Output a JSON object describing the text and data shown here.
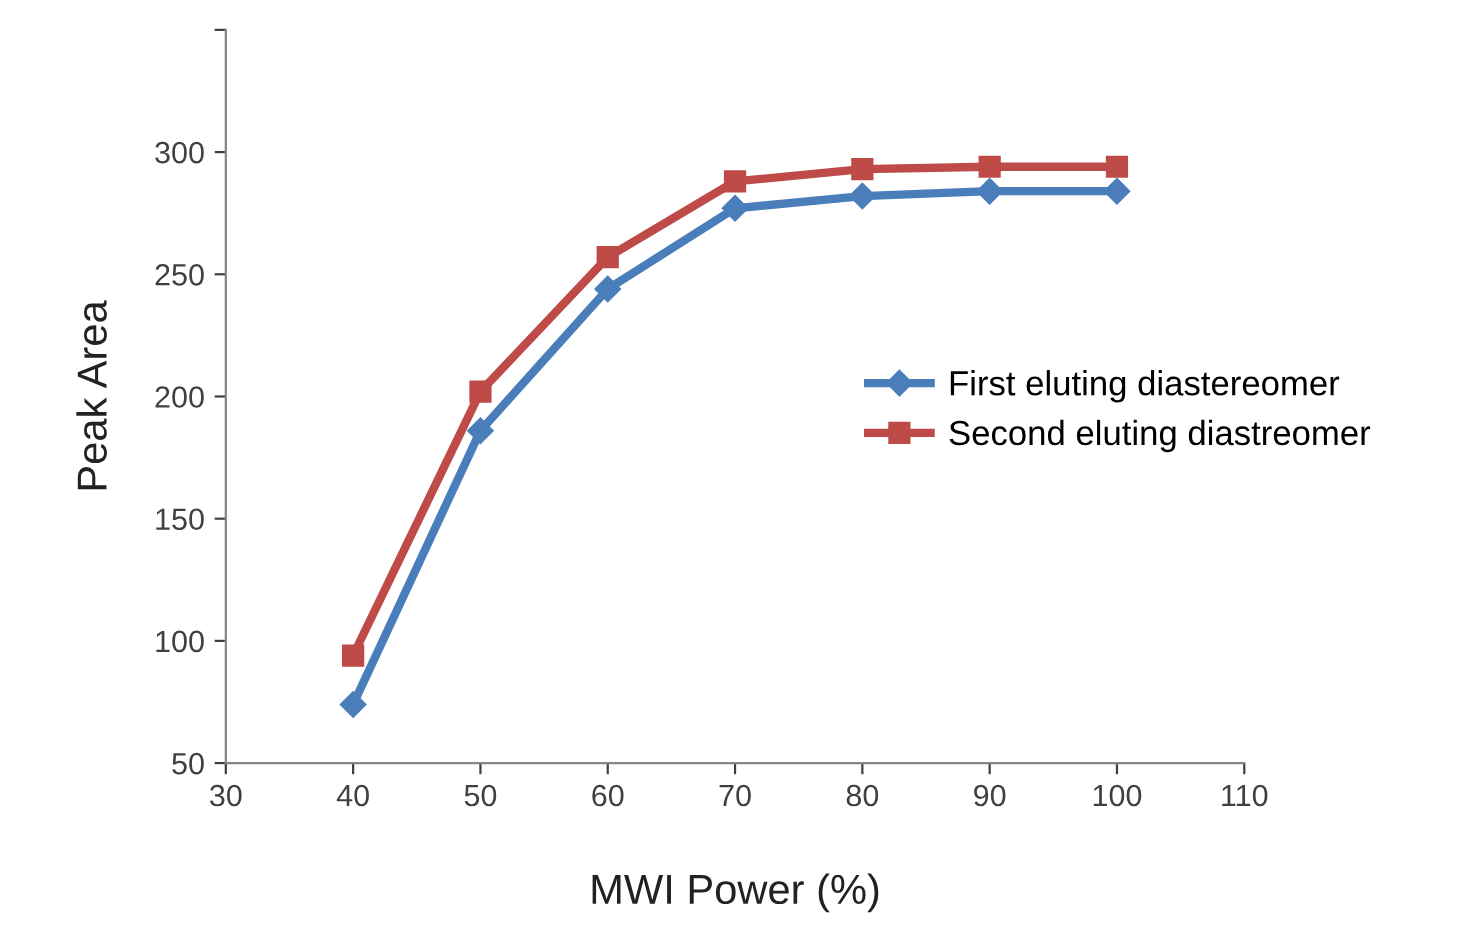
{
  "chart_data": {
    "type": "line",
    "xlabel": "MWI Power (%)",
    "ylabel": "Peak Area",
    "x": [
      40,
      50,
      60,
      70,
      80,
      90,
      100
    ],
    "series": [
      {
        "name": "First eluting diastereomer",
        "color": "#4a7ebb",
        "marker": "diamond",
        "values": [
          74,
          186,
          244,
          277,
          282,
          284,
          284
        ]
      },
      {
        "name": "Second eluting diastreomer",
        "color": "#be4b48",
        "marker": "square",
        "values": [
          94,
          202,
          257,
          288,
          293,
          294,
          294
        ]
      }
    ],
    "xlim": [
      30,
      110
    ],
    "xticks": [
      30,
      40,
      50,
      60,
      70,
      80,
      90,
      100,
      110
    ],
    "ylim": [
      50,
      350
    ],
    "yticks": [
      50,
      100,
      150,
      200,
      250,
      300,
      {
        "value": 350,
        "label": null
      }
    ],
    "grid": false,
    "legend": "right",
    "line_style": "solid"
  }
}
